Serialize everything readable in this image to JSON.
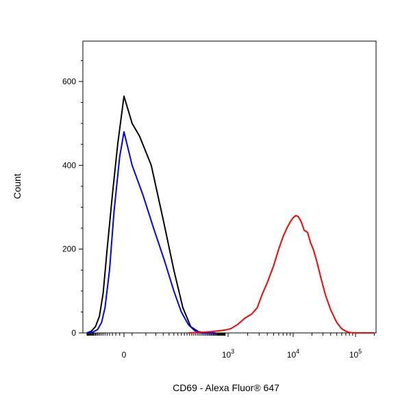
{
  "chart_data": {
    "type": "line",
    "title": "",
    "xlabel": "CD69 - Alexa Fluor® 647",
    "ylabel": "Count",
    "xscale": "biexponential (linear near 0, log above 10^3)",
    "xlim": [
      -250,
      200000
    ],
    "ylim": [
      0,
      700
    ],
    "grid": false,
    "legend": "none",
    "y_ticks": [
      0,
      200,
      400,
      600
    ],
    "x_ticks": [
      {
        "value": 0,
        "base": "0",
        "exp": ""
      },
      {
        "value": 1000,
        "base": "10",
        "exp": "3"
      },
      {
        "value": 10000,
        "base": "10",
        "exp": "4"
      },
      {
        "value": 100000,
        "base": "10",
        "exp": "5"
      }
    ],
    "series": [
      {
        "color": "#000000",
        "x": [
          -250,
          -180,
          -130,
          -95,
          -70,
          -50,
          -30,
          -15,
          0,
          10,
          20,
          40,
          70,
          110,
          160,
          220,
          300,
          400,
          600
        ],
        "y": [
          0,
          4,
          15,
          40,
          95,
          200,
          330,
          450,
          565,
          500,
          470,
          400,
          270,
          150,
          60,
          15,
          3,
          0,
          0
        ]
      },
      {
        "color": "#0000ff",
        "x": [
          -250,
          -160,
          -110,
          -80,
          -60,
          -40,
          -25,
          -10,
          0,
          10,
          25,
          45,
          75,
          110,
          150,
          200,
          260,
          350,
          600
        ],
        "y": [
          0,
          2,
          8,
          25,
          60,
          150,
          290,
          420,
          480,
          400,
          330,
          250,
          170,
          100,
          50,
          20,
          5,
          0,
          0
        ]
      },
      {
        "color": "#ff0000",
        "x": [
          200,
          300,
          500,
          700,
          900,
          1100,
          1400,
          1800,
          2300,
          2800,
          3300,
          4000,
          5000,
          6000,
          7000,
          8000,
          9000,
          10000,
          11000,
          12000,
          13500,
          15000,
          17000,
          19000,
          21000,
          24000,
          28000,
          33000,
          40000,
          50000,
          60000,
          70000,
          80000,
          100000,
          200000
        ],
        "y": [
          0,
          1,
          3,
          5,
          7,
          10,
          20,
          35,
          45,
          60,
          90,
          120,
          160,
          200,
          230,
          250,
          265,
          275,
          280,
          278,
          265,
          245,
          240,
          215,
          200,
          170,
          130,
          90,
          55,
          25,
          10,
          4,
          1,
          0,
          0
        ]
      }
    ]
  }
}
